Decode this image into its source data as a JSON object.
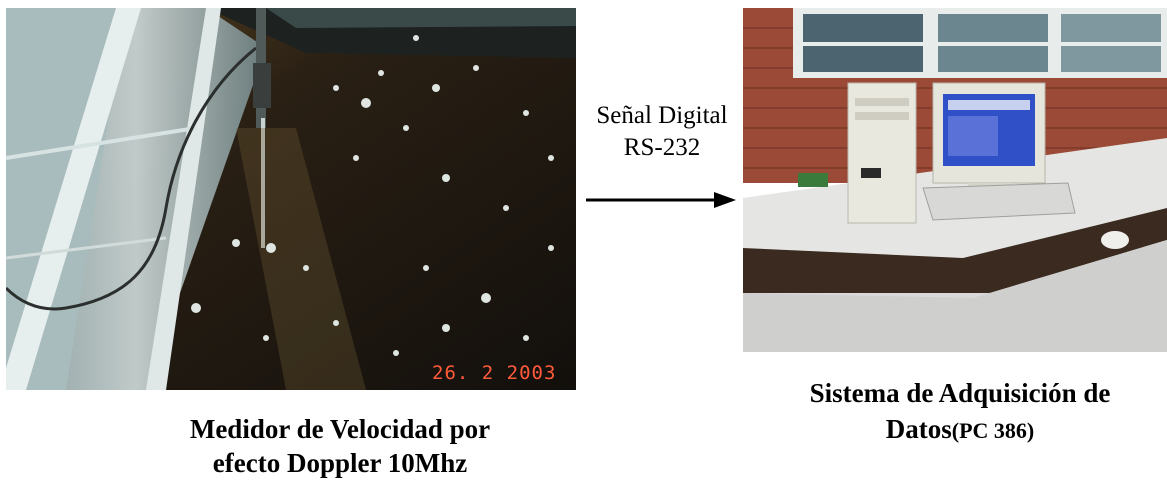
{
  "left_photo": {
    "date_stamp": "26. 2 2003"
  },
  "connector": {
    "line1": "Señal Digital",
    "line2": "RS-232"
  },
  "captions": {
    "left_line1": "Medidor de Velocidad por",
    "left_line2": "efecto Doppler 10Mhz",
    "right_line1": "Sistema de Adquisición de",
    "right_line2_main": "Datos",
    "right_line2_small": "(PC 386)"
  },
  "colors": {
    "background": "#ffffff",
    "water": "#2a1f12",
    "stamp": "#ff5a3a",
    "brick": "#9a4a36"
  }
}
